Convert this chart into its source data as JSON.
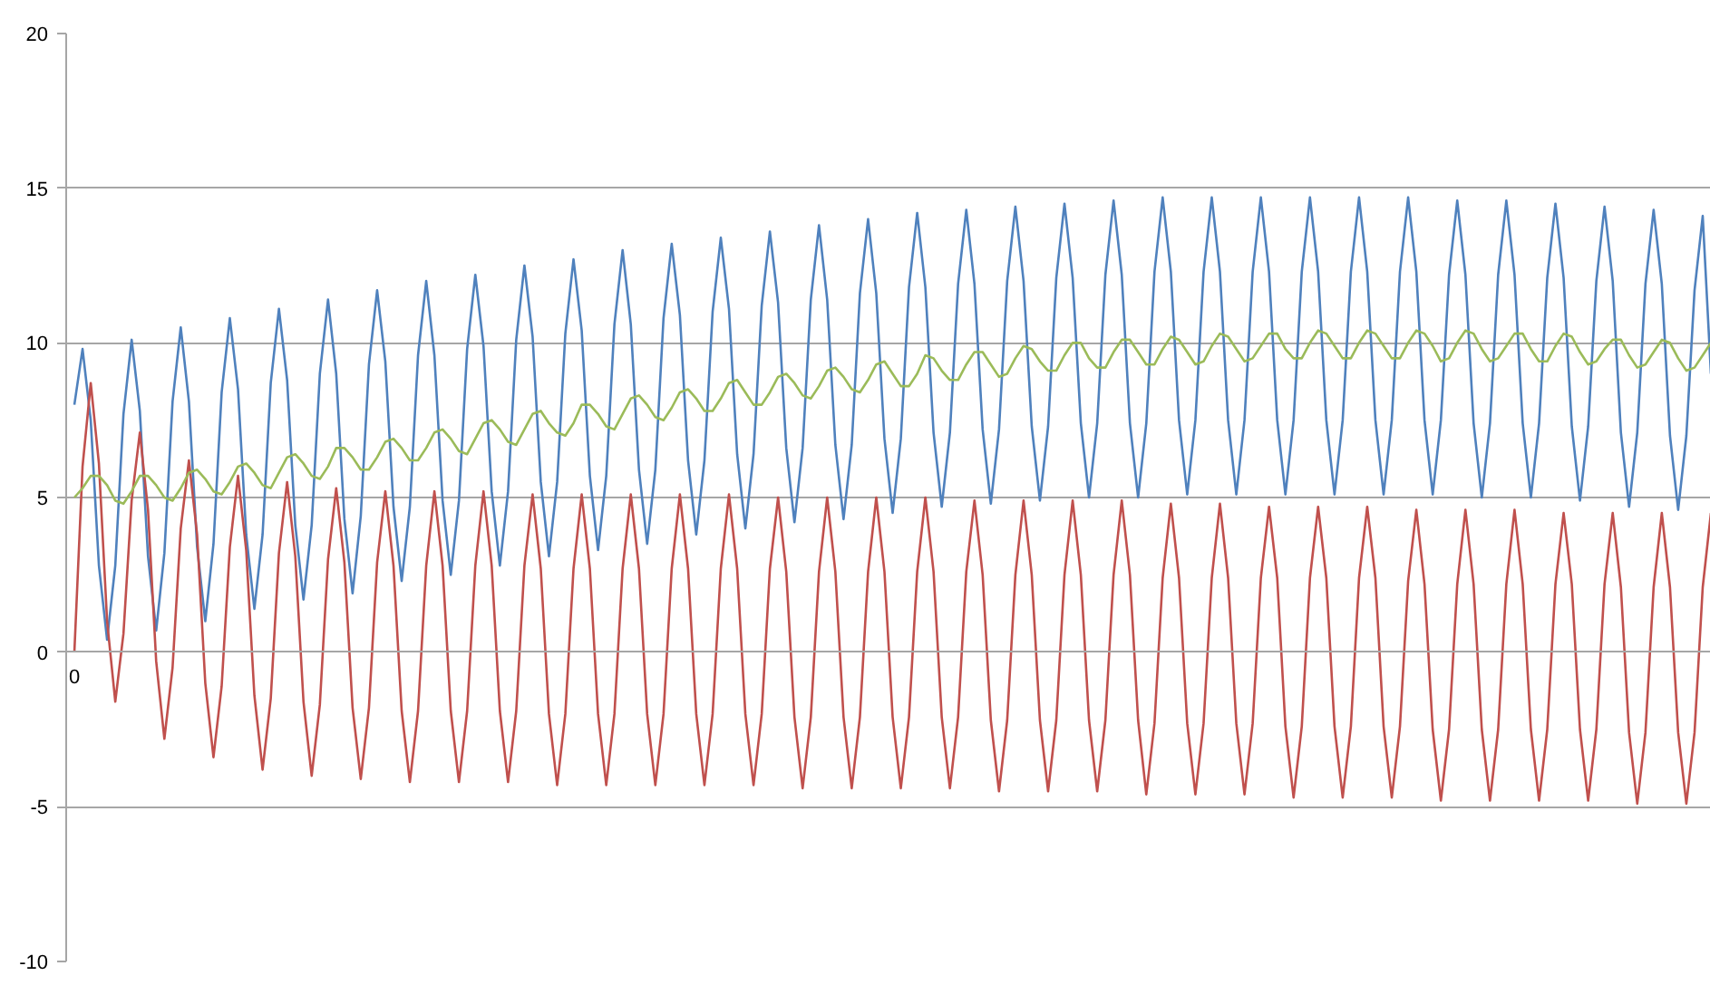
{
  "chart_data": {
    "type": "line",
    "categories": [
      "0",
      null,
      null,
      null,
      null,
      null,
      null,
      null,
      null,
      null,
      null,
      null,
      null,
      null,
      null,
      null,
      null,
      null,
      null,
      null,
      null,
      null,
      null,
      null,
      null,
      null,
      null,
      null,
      null,
      null,
      null,
      null,
      null,
      null,
      null,
      null,
      null,
      null,
      null,
      null,
      null,
      null,
      null,
      null,
      null,
      null,
      null,
      null,
      null,
      null,
      null,
      null,
      null,
      null,
      null,
      null,
      null,
      null,
      null,
      null,
      null,
      null,
      null,
      null,
      null,
      null,
      null,
      null,
      null,
      null,
      null,
      null,
      null,
      null,
      null,
      null,
      null,
      null,
      null,
      null,
      null,
      null,
      null,
      null,
      null,
      null,
      null,
      null,
      null,
      null,
      null,
      null,
      null,
      null,
      null,
      null,
      null,
      null,
      null,
      null,
      null,
      null,
      null,
      null,
      null,
      null,
      null,
      null,
      null,
      null,
      null,
      null,
      null,
      null,
      null,
      null,
      null,
      null,
      null,
      null,
      null,
      null,
      null,
      null,
      null,
      null,
      null,
      null,
      null,
      null,
      null,
      null,
      null,
      null,
      null,
      null,
      null,
      null,
      null,
      null,
      null,
      null,
      null,
      null,
      null,
      null,
      null,
      null,
      null,
      null,
      null,
      null,
      null,
      null,
      null,
      null,
      null,
      null,
      null,
      null,
      null,
      null,
      null,
      null,
      null,
      null,
      null,
      null,
      null,
      null,
      null,
      null,
      null,
      null,
      null,
      null,
      null,
      null,
      null,
      null,
      null,
      null,
      null,
      null,
      null,
      null,
      null,
      null,
      null,
      null,
      null,
      null,
      null,
      null,
      null,
      null,
      null,
      null,
      null,
      null,
      null
    ],
    "ylim": [
      -10,
      20
    ],
    "yticks": [
      -10,
      -5,
      0,
      5,
      10,
      15,
      20
    ],
    "grid": "y",
    "series": [
      {
        "color": "#4f81bd",
        "values": [
          8.0,
          9.8,
          7.5,
          2.8,
          0.4,
          2.8,
          7.7,
          10.1,
          7.8,
          3.1,
          0.7,
          3.2,
          8.1,
          10.5,
          8.1,
          3.4,
          1.0,
          3.5,
          8.4,
          10.8,
          8.5,
          3.8,
          1.4,
          3.8,
          8.7,
          11.1,
          8.8,
          4.1,
          1.7,
          4.1,
          9.0,
          11.4,
          9.0,
          4.3,
          1.9,
          4.4,
          9.3,
          11.7,
          9.4,
          4.7,
          2.3,
          4.7,
          9.6,
          12.0,
          9.6,
          4.9,
          2.5,
          4.9,
          9.8,
          12.2,
          9.9,
          5.2,
          2.8,
          5.2,
          10.1,
          12.5,
          10.2,
          5.5,
          3.1,
          5.5,
          10.3,
          12.7,
          10.4,
          5.7,
          3.3,
          5.7,
          10.6,
          13.0,
          10.6,
          5.9,
          3.5,
          5.9,
          10.8,
          13.2,
          10.9,
          6.2,
          3.8,
          6.2,
          11.0,
          13.4,
          11.1,
          6.4,
          4.0,
          6.4,
          11.2,
          13.6,
          11.3,
          6.6,
          4.2,
          6.6,
          11.4,
          13.8,
          11.4,
          6.7,
          4.3,
          6.7,
          11.6,
          14.0,
          11.6,
          6.9,
          4.5,
          6.9,
          11.8,
          14.2,
          11.8,
          7.1,
          4.7,
          7.1,
          11.9,
          14.3,
          11.9,
          7.2,
          4.8,
          7.2,
          12.0,
          14.4,
          12.0,
          7.3,
          4.9,
          7.3,
          12.1,
          14.5,
          12.1,
          7.4,
          5.0,
          7.4,
          12.2,
          14.6,
          12.2,
          7.4,
          5.0,
          7.4,
          12.3,
          14.7,
          12.3,
          7.5,
          5.1,
          7.5,
          12.3,
          14.7,
          12.3,
          7.5,
          5.1,
          7.5,
          12.3,
          14.7,
          12.3,
          7.5,
          5.1,
          7.5,
          12.3,
          14.7,
          12.3,
          7.5,
          5.1,
          7.5,
          12.3,
          14.7,
          12.3,
          7.5,
          5.1,
          7.5,
          12.3,
          14.7,
          12.3,
          7.5,
          5.1,
          7.5,
          12.2,
          14.6,
          12.2,
          7.4,
          5.0,
          7.4,
          12.2,
          14.6,
          12.2,
          7.4,
          5.0,
          7.4,
          12.1,
          14.5,
          12.1,
          7.3,
          4.9,
          7.3,
          12.0,
          14.4,
          12.0,
          7.1,
          4.7,
          7.1,
          11.9,
          14.3,
          11.9,
          7.0,
          4.6,
          7.0,
          11.7,
          14.1,
          9.0
        ]
      },
      {
        "color": "#c0504d",
        "values": [
          0.0,
          6.0,
          8.7,
          6.1,
          1.0,
          -1.6,
          0.6,
          4.9,
          7.1,
          4.6,
          -0.3,
          -2.8,
          -0.5,
          4.0,
          6.2,
          3.8,
          -1.0,
          -3.4,
          -1.1,
          3.4,
          5.7,
          3.3,
          -1.4,
          -3.8,
          -1.5,
          3.2,
          5.5,
          3.1,
          -1.6,
          -4.0,
          -1.7,
          3.0,
          5.3,
          2.9,
          -1.8,
          -4.1,
          -1.8,
          2.9,
          5.2,
          2.8,
          -1.9,
          -4.2,
          -1.9,
          2.8,
          5.2,
          2.8,
          -1.9,
          -4.2,
          -1.9,
          2.8,
          5.2,
          2.8,
          -1.9,
          -4.2,
          -1.9,
          2.8,
          5.1,
          2.7,
          -2.0,
          -4.3,
          -2.0,
          2.7,
          5.1,
          2.7,
          -2.0,
          -4.3,
          -2.0,
          2.7,
          5.1,
          2.7,
          -2.0,
          -4.3,
          -2.0,
          2.7,
          5.1,
          2.7,
          -2.0,
          -4.3,
          -2.0,
          2.7,
          5.1,
          2.7,
          -2.0,
          -4.3,
          -2.0,
          2.7,
          5.0,
          2.6,
          -2.1,
          -4.4,
          -2.1,
          2.6,
          5.0,
          2.6,
          -2.1,
          -4.4,
          -2.1,
          2.6,
          5.0,
          2.6,
          -2.1,
          -4.4,
          -2.1,
          2.6,
          5.0,
          2.6,
          -2.1,
          -4.4,
          -2.1,
          2.6,
          4.9,
          2.5,
          -2.2,
          -4.5,
          -2.2,
          2.5,
          4.9,
          2.5,
          -2.2,
          -4.5,
          -2.2,
          2.5,
          4.9,
          2.5,
          -2.2,
          -4.5,
          -2.2,
          2.5,
          4.9,
          2.5,
          -2.2,
          -4.6,
          -2.3,
          2.4,
          4.8,
          2.4,
          -2.3,
          -4.6,
          -2.3,
          2.4,
          4.8,
          2.4,
          -2.3,
          -4.6,
          -2.3,
          2.4,
          4.7,
          2.4,
          -2.4,
          -4.7,
          -2.4,
          2.4,
          4.7,
          2.4,
          -2.4,
          -4.7,
          -2.4,
          2.4,
          4.7,
          2.4,
          -2.4,
          -4.7,
          -2.4,
          2.3,
          4.6,
          2.2,
          -2.5,
          -4.8,
          -2.5,
          2.2,
          4.6,
          2.2,
          -2.5,
          -4.8,
          -2.5,
          2.2,
          4.6,
          2.2,
          -2.5,
          -4.8,
          -2.5,
          2.2,
          4.5,
          2.2,
          -2.5,
          -4.8,
          -2.5,
          2.2,
          4.5,
          2.1,
          -2.6,
          -4.9,
          -2.6,
          2.1,
          4.5,
          2.1,
          -2.6,
          -4.9,
          -2.6,
          2.1,
          4.5
        ]
      },
      {
        "color": "#9bbb59",
        "values": [
          5.0,
          5.3,
          5.7,
          5.7,
          5.4,
          4.9,
          4.8,
          5.2,
          5.7,
          5.7,
          5.4,
          5.0,
          4.9,
          5.3,
          5.8,
          5.9,
          5.6,
          5.2,
          5.1,
          5.5,
          6.0,
          6.1,
          5.8,
          5.4,
          5.3,
          5.8,
          6.3,
          6.4,
          6.1,
          5.7,
          5.6,
          6.0,
          6.6,
          6.6,
          6.3,
          5.9,
          5.9,
          6.3,
          6.8,
          6.9,
          6.6,
          6.2,
          6.2,
          6.6,
          7.1,
          7.2,
          6.9,
          6.5,
          6.4,
          6.9,
          7.4,
          7.5,
          7.2,
          6.8,
          6.7,
          7.2,
          7.7,
          7.8,
          7.4,
          7.1,
          7.0,
          7.4,
          8.0,
          8.0,
          7.7,
          7.3,
          7.2,
          7.7,
          8.2,
          8.3,
          8.0,
          7.6,
          7.5,
          7.9,
          8.4,
          8.5,
          8.2,
          7.8,
          7.8,
          8.2,
          8.7,
          8.8,
          8.4,
          8.0,
          8.0,
          8.4,
          8.9,
          9.0,
          8.7,
          8.3,
          8.2,
          8.6,
          9.1,
          9.2,
          8.9,
          8.5,
          8.4,
          8.8,
          9.3,
          9.4,
          9.0,
          8.6,
          8.6,
          9.0,
          9.6,
          9.5,
          9.1,
          8.8,
          8.8,
          9.3,
          9.7,
          9.7,
          9.3,
          8.9,
          9.0,
          9.5,
          9.9,
          9.8,
          9.4,
          9.1,
          9.1,
          9.6,
          10.0,
          10.0,
          9.5,
          9.2,
          9.2,
          9.7,
          10.1,
          10.1,
          9.7,
          9.3,
          9.3,
          9.8,
          10.2,
          10.1,
          9.7,
          9.3,
          9.4,
          9.9,
          10.3,
          10.2,
          9.8,
          9.4,
          9.5,
          9.9,
          10.3,
          10.3,
          9.8,
          9.5,
          9.5,
          10.0,
          10.4,
          10.3,
          9.9,
          9.5,
          9.5,
          10.0,
          10.4,
          10.3,
          9.9,
          9.5,
          9.5,
          10.0,
          10.4,
          10.3,
          9.9,
          9.4,
          9.5,
          10.0,
          10.4,
          10.3,
          9.8,
          9.4,
          9.5,
          9.9,
          10.3,
          10.3,
          9.8,
          9.4,
          9.4,
          9.9,
          10.3,
          10.2,
          9.7,
          9.3,
          9.4,
          9.8,
          10.1,
          10.1,
          9.6,
          9.2,
          9.3,
          9.7,
          10.1,
          10.0,
          9.5,
          9.1,
          9.2,
          9.6,
          10.0
        ]
      }
    ]
  }
}
